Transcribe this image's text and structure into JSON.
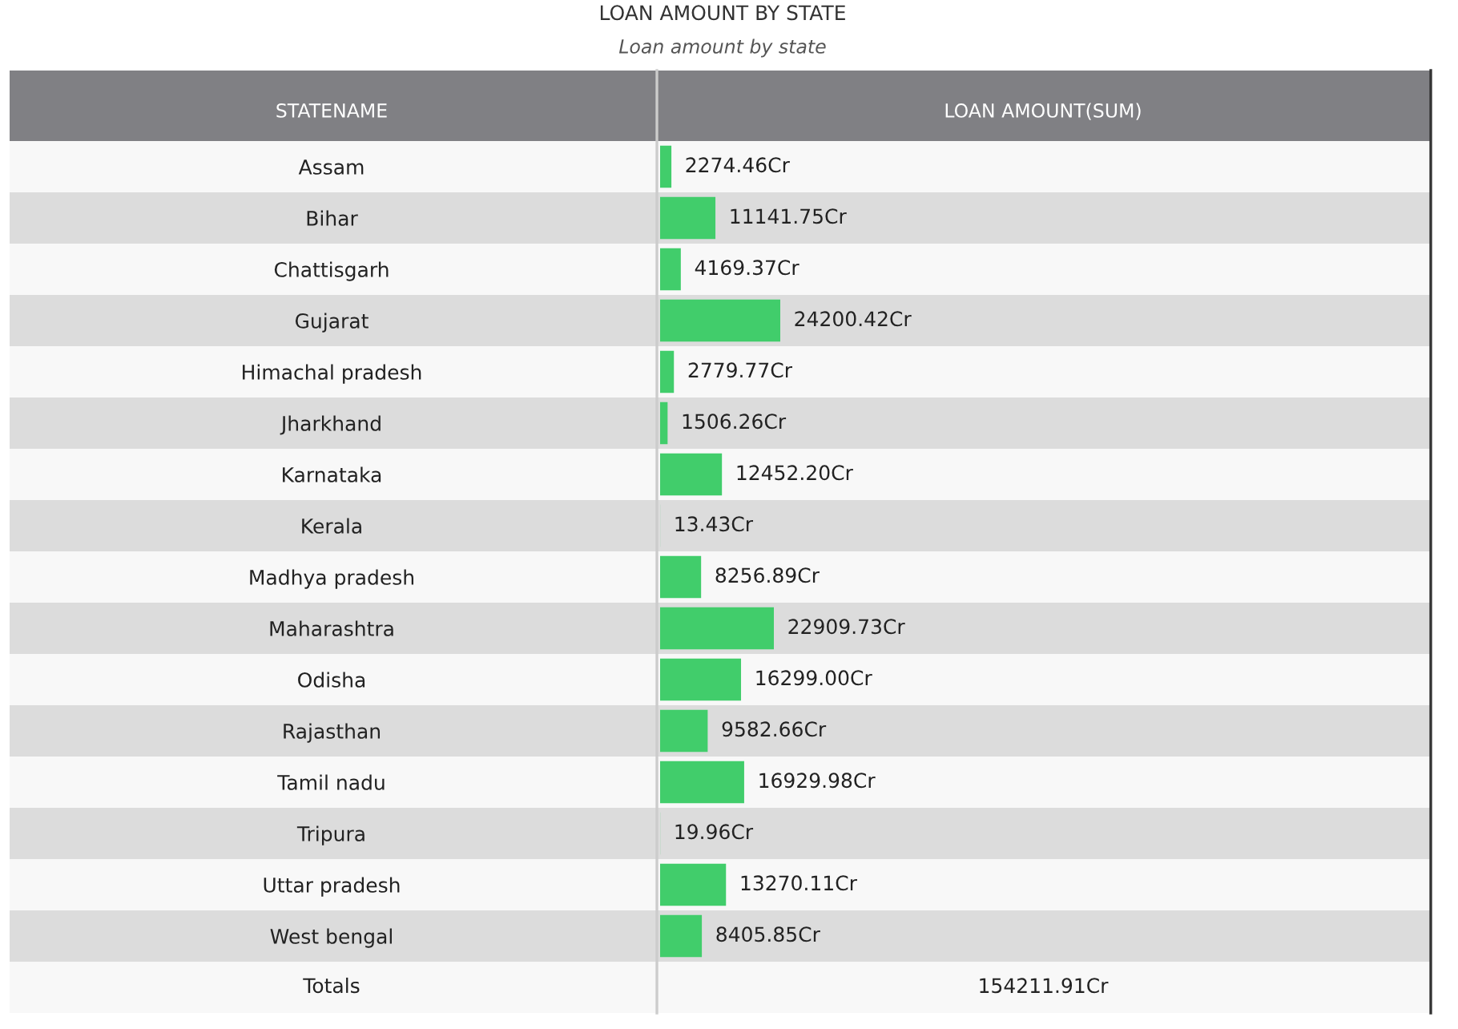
{
  "chart_data": {
    "type": "bar",
    "orientation": "horizontal",
    "title": "LOAN AMOUNT BY STATE",
    "subtitle": "Loan amount by state",
    "ylabel": "STATENAME",
    "categories": [
      "Assam",
      "Bihar",
      "Chattisgarh",
      "Gujarat",
      "Himachal pradesh",
      "Jharkhand",
      "Karnataka",
      "Kerala",
      "Madhya pradesh",
      "Maharashtra",
      "Odisha",
      "Rajasthan",
      "Tamil nadu",
      "Tripura",
      "Uttar pradesh",
      "West bengal"
    ],
    "values": [
      2274.46,
      11141.75,
      4169.37,
      24200.42,
      2779.77,
      1506.26,
      12452.2,
      13.43,
      8256.89,
      22909.73,
      16299.0,
      9582.66,
      16929.98,
      19.96,
      13270.11,
      8405.85
    ],
    "value_labels": [
      "2274.46Cr",
      "11141.75Cr",
      "4169.37Cr",
      "24200.42Cr",
      "2779.77Cr",
      "1506.26Cr",
      "12452.20Cr",
      "13.43Cr",
      "8256.89Cr",
      "22909.73Cr",
      "16299.00Cr",
      "9582.66Cr",
      "16929.98Cr",
      "19.96Cr",
      "13270.11Cr",
      "8405.85Cr"
    ],
    "color": "#41cd6b",
    "annotations": [
      "LOAN AMOUNT(SUM)",
      "Totals",
      "154211.91Cr"
    ]
  }
}
